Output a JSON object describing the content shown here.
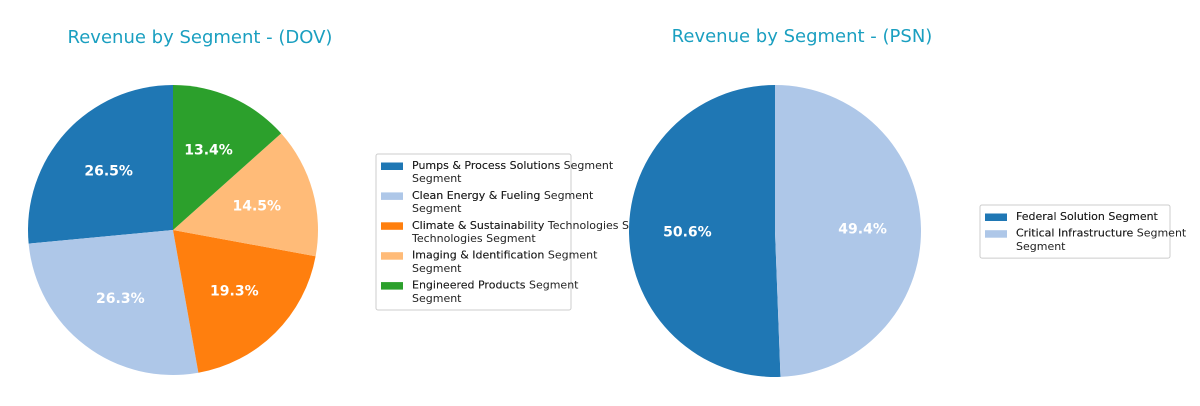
{
  "chart_data": [
    {
      "type": "pie",
      "title": "Revenue by Segment - (DOV)",
      "series": [
        {
          "name": "Pumps & Process Solutions Segment",
          "color": "#1f77b4",
          "values": [
            26.5
          ],
          "value_labels": [
            "26.5%"
          ]
        },
        {
          "name": "Clean Energy & Fueling Segment",
          "color": "#aec7e8",
          "values": [
            26.3
          ],
          "value_labels": [
            "26.3%"
          ]
        },
        {
          "name": "Climate & Sustainability Technologies Segment",
          "color": "#ff7f0e",
          "values": [
            19.3
          ],
          "value_labels": [
            "19.3%"
          ]
        },
        {
          "name": "Imaging & Identification Segment",
          "color": "#ffbb78",
          "values": [
            14.5
          ],
          "value_labels": [
            "14.5%"
          ]
        },
        {
          "name": "Engineered Products Segment",
          "color": "#2ca02c",
          "values": [
            13.4
          ],
          "value_labels": [
            "13.4%"
          ]
        }
      ],
      "legend": "right"
    },
    {
      "type": "pie",
      "title": "Revenue by Segment - (PSN)",
      "series": [
        {
          "name": "Federal Solution Segment",
          "color": "#1f77b4",
          "values": [
            50.6
          ],
          "value_labels": [
            "50.6%"
          ]
        },
        {
          "name": "Critical Infrastructure Segment",
          "color": "#aec7e8",
          "values": [
            49.4
          ],
          "value_labels": [
            "49.4%"
          ]
        }
      ],
      "legend": "right"
    }
  ]
}
